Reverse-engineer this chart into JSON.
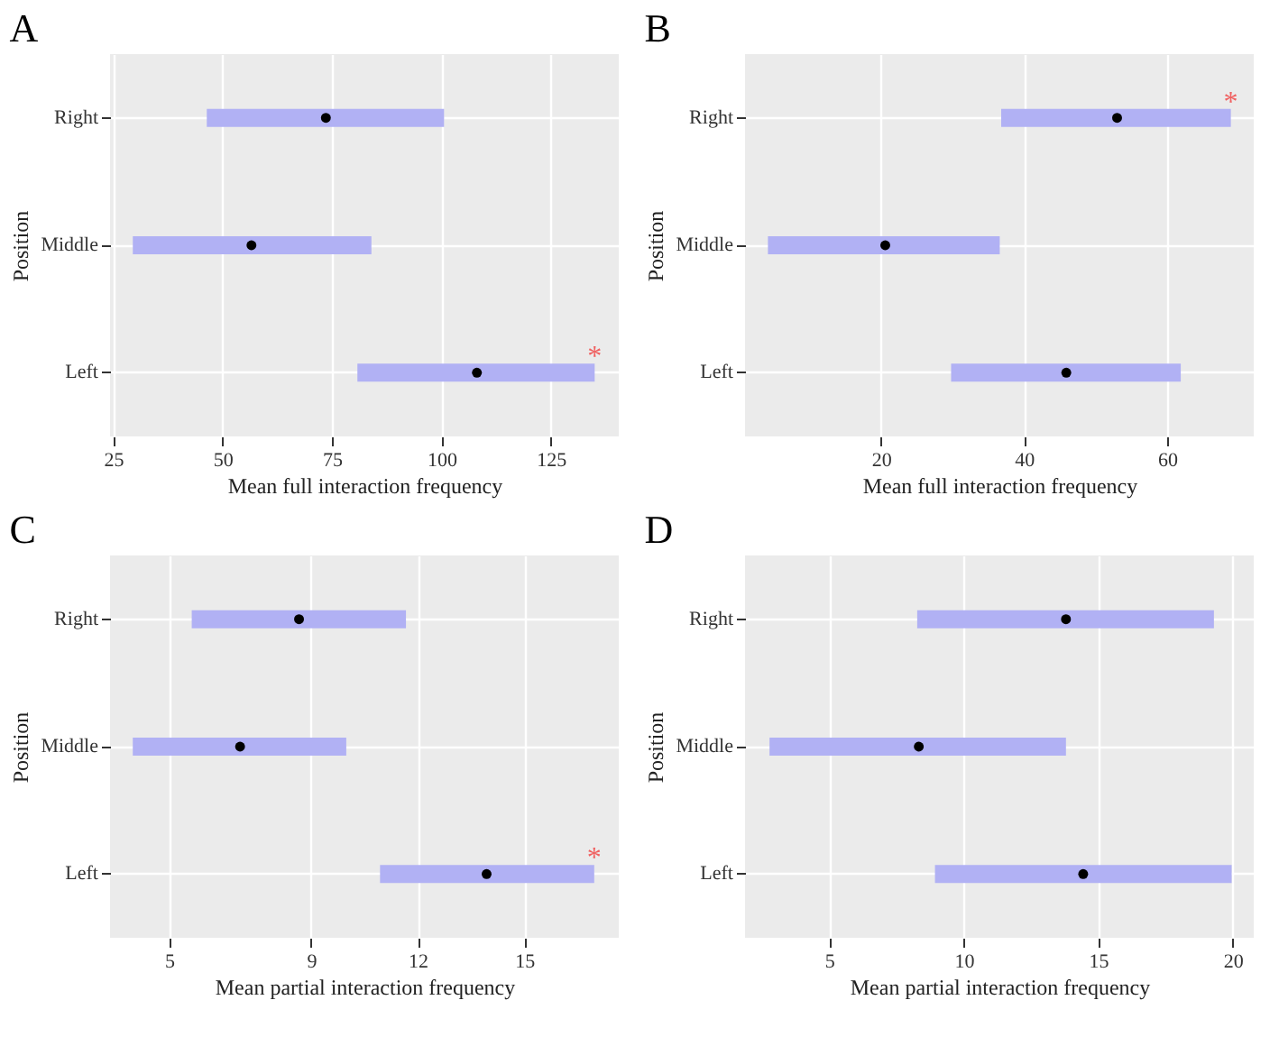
{
  "chart_data": [
    {
      "type": "scatter",
      "title": "A",
      "orientation": "horizontal",
      "categories": [
        "Right",
        "Middle",
        "Left"
      ],
      "values": [
        73.6,
        56.6,
        108.1
      ],
      "color": "#000000",
      "marker": "circle",
      "errors": [
        [
          46.4,
          100.6
        ],
        [
          29.5,
          84
        ],
        [
          80.8,
          135
        ]
      ],
      "xlim": [
        24.3,
        140.5
      ],
      "xticks": [
        25,
        50,
        75,
        100,
        125
      ],
      "xlabel": "Mean full interaction frequency",
      "ylabel": "Position",
      "grid": true,
      "annotations": [
        {
          "text": "*",
          "x": 135,
          "y": "Left"
        }
      ]
    },
    {
      "type": "scatter",
      "title": "B",
      "orientation": "horizontal",
      "categories": [
        "Right",
        "Middle",
        "Left"
      ],
      "values": [
        53.0,
        20.6,
        45.9
      ],
      "color": "#000000",
      "marker": "circle",
      "errors": [
        [
          36.8,
          68.9
        ],
        [
          4.2,
          36.6
        ],
        [
          29.8,
          61.9
        ]
      ],
      "xlim": [
        1,
        72.1
      ],
      "xticks": [
        20,
        40,
        60
      ],
      "xlabel": "Mean full interaction frequency",
      "ylabel": "Position",
      "grid": true,
      "annotations": [
        {
          "text": "*",
          "x": 68.9,
          "y": "Right"
        }
      ]
    },
    {
      "type": "scatter",
      "title": "C",
      "orientation": "horizontal",
      "categories": [
        "Right",
        "Middle",
        "Left"
      ],
      "values": [
        8.66,
        7.0,
        13.94
      ],
      "color": "#000000",
      "marker": "circle",
      "errors": [
        [
          5.64,
          11.67
        ],
        [
          3.98,
          9.99
        ],
        [
          10.94,
          16.97
        ]
      ],
      "xlim": [
        3.34,
        17.66
      ],
      "xticks": [
        5,
        9,
        12,
        15
      ],
      "xlabel": "Mean partial interaction frequency",
      "ylabel": "Position",
      "grid": true,
      "annotations": [
        {
          "text": "*",
          "x": 16.97,
          "y": "Left"
        }
      ]
    },
    {
      "type": "scatter",
      "title": "D",
      "orientation": "horizontal",
      "categories": [
        "Right",
        "Middle",
        "Left"
      ],
      "values": [
        13.8,
        8.33,
        14.44
      ],
      "color": "#000000",
      "marker": "circle",
      "errors": [
        [
          8.27,
          19.3
        ],
        [
          2.78,
          13.8
        ],
        [
          8.93,
          19.96
        ]
      ],
      "xlim": [
        1.87,
        20.78
      ],
      "xticks": [
        5,
        10,
        15,
        20
      ],
      "xlabel": "Mean partial interaction frequency",
      "ylabel": "Position",
      "grid": true
    }
  ]
}
